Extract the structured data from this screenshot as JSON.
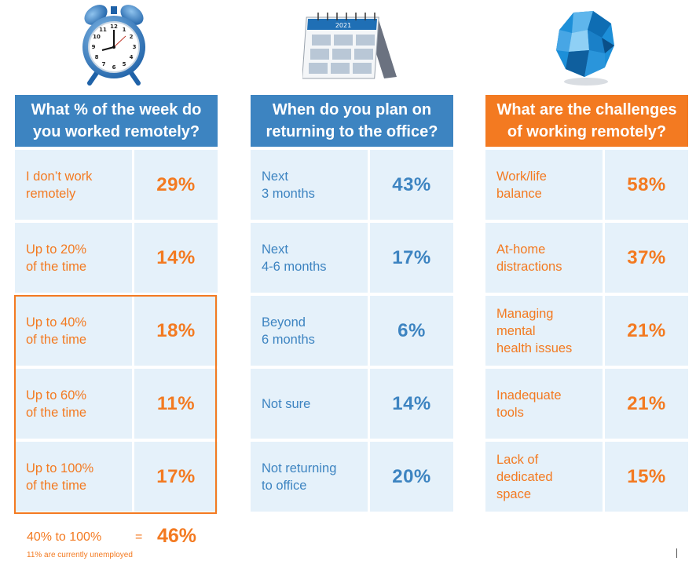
{
  "colors": {
    "blue": "#3d84c1",
    "orange": "#f37a21",
    "cell_bg": "#e5f1fa"
  },
  "icons": {
    "panel_1": "alarm-clock-icon",
    "panel_2": "desk-calendar-icon",
    "panel_3": "crumpled-paper-icon"
  },
  "calendar_year": "2021",
  "panels": [
    {
      "title_line1": "What % of the week do",
      "title_line2": "you worked remotely?",
      "rows": [
        {
          "line1": "I don’t work",
          "line2": "remotely",
          "value": "29%"
        },
        {
          "line1": "Up to 20%",
          "line2": "of the time",
          "value": "14%"
        },
        {
          "line1": "Up to 40%",
          "line2": "of the time",
          "value": "18%"
        },
        {
          "line1": "Up to 60%",
          "line2": "of the time",
          "value": "11%"
        },
        {
          "line1": "Up to 100%",
          "line2": "of the time",
          "value": "17%"
        }
      ]
    },
    {
      "title_line1": "When do you plan on",
      "title_line2": "returning to the office?",
      "rows": [
        {
          "line1": "Next",
          "line2": "3 months",
          "value": "43%"
        },
        {
          "line1": "Next",
          "line2": "4-6 months",
          "value": "17%"
        },
        {
          "line1": "Beyond",
          "line2": "6 months",
          "value": "6%"
        },
        {
          "line1": "Not sure",
          "value": "14%"
        },
        {
          "line1": "Not returning",
          "line2": "to office",
          "value": "20%"
        }
      ]
    },
    {
      "title_line1": "What are the challenges",
      "title_line2": "of working remotely?",
      "rows": [
        {
          "line1": "Work/life",
          "line2": "balance",
          "value": "58%"
        },
        {
          "line1": "At-home",
          "line2": "distractions",
          "value": "37%"
        },
        {
          "line1": "Managing",
          "line2": "mental",
          "line3": "health issues",
          "value": "21%"
        },
        {
          "line1": "Inadequate",
          "line2": "tools",
          "value": "21%"
        },
        {
          "line1": "Lack of",
          "line2": "dedicated",
          "line3": "space",
          "value": "15%"
        }
      ]
    }
  ],
  "summary": {
    "label": "40% to 100%",
    "equals": "=",
    "value": "46%"
  },
  "footnote": "11% are currently unemployed"
}
